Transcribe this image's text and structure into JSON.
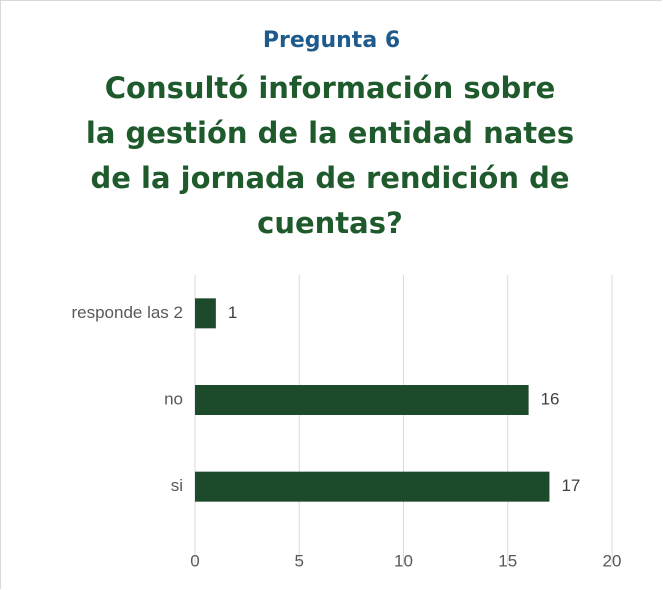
{
  "chart_data": {
    "type": "hbar",
    "subtitle": "Pregunta 6",
    "title": "Consultó información sobre la gestión de la entidad nates de la jornada de rendición de cuentas?",
    "categories": [
      "si",
      "no",
      "responde las 2"
    ],
    "values": [
      17,
      16,
      1
    ],
    "color": "#1d4a2a",
    "xlim": [
      0,
      20
    ],
    "xticks": [
      0,
      5,
      10,
      15,
      20
    ],
    "grid": true
  }
}
